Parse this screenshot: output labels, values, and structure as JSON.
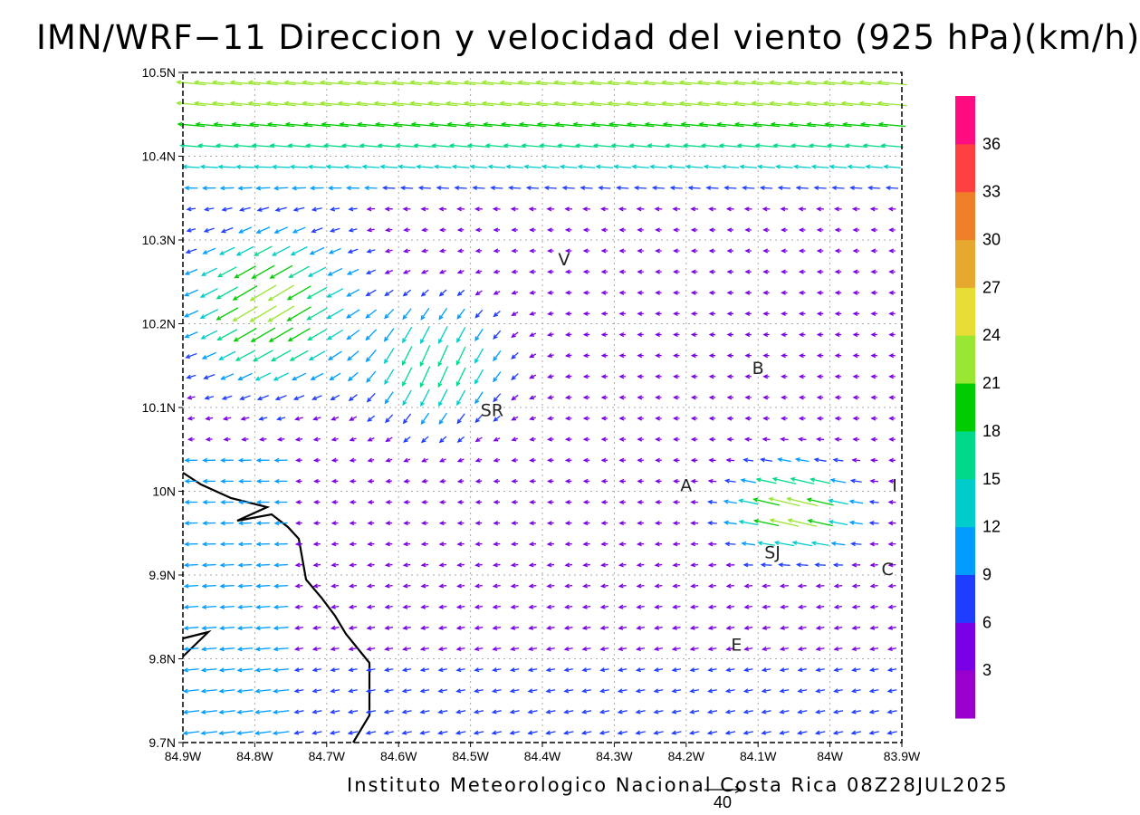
{
  "title": "IMN/WRF−11 Direccion y velocidad del viento (925 hPa)(km/h)",
  "footer": "Instituto Meteorologico Nacional Costa Rica 08Z28JUL2025",
  "reference_vector": {
    "label": "40",
    "speed": 40
  },
  "map_data": {
    "lon_range": [
      -84.9,
      -83.9
    ],
    "lat_range": [
      9.7,
      10.5
    ],
    "x_tick_labels": [
      "84.9W",
      "84.8W",
      "84.7W",
      "84.6W",
      "84.5W",
      "84.4W",
      "84.3W",
      "84.2W",
      "84.1W",
      "84W",
      "83.9W"
    ],
    "y_tick_labels": [
      "9.7N",
      "9.8N",
      "9.9N",
      "10N",
      "10.1N",
      "10.2N",
      "10.3N",
      "10.4N",
      "10.5N"
    ],
    "grid": true,
    "places": [
      {
        "label": "V",
        "lon": -84.37,
        "lat": 10.27
      },
      {
        "label": "SR",
        "lon": -84.47,
        "lat": 10.09
      },
      {
        "label": "B",
        "lon": -84.1,
        "lat": 10.14
      },
      {
        "label": "A",
        "lon": -84.2,
        "lat": 10.0
      },
      {
        "label": "I",
        "lon": -83.91,
        "lat": 10.0
      },
      {
        "label": "SJ",
        "lon": -84.08,
        "lat": 9.92
      },
      {
        "label": "C",
        "lon": -83.92,
        "lat": 9.9
      },
      {
        "label": "E",
        "lon": -84.13,
        "lat": 9.81
      }
    ],
    "colorbar": {
      "ticks": [
        "3",
        "6",
        "9",
        "12",
        "15",
        "18",
        "21",
        "24",
        "27",
        "30",
        "33",
        "36"
      ],
      "colors": [
        "#9900cc",
        "#7a00e6",
        "#1f3dff",
        "#009dff",
        "#00cccc",
        "#00d98a",
        "#00cc00",
        "#99e633",
        "#e6dc33",
        "#e6a82e",
        "#ee7f28",
        "#ff4040",
        "#ff0d80"
      ]
    }
  }
}
